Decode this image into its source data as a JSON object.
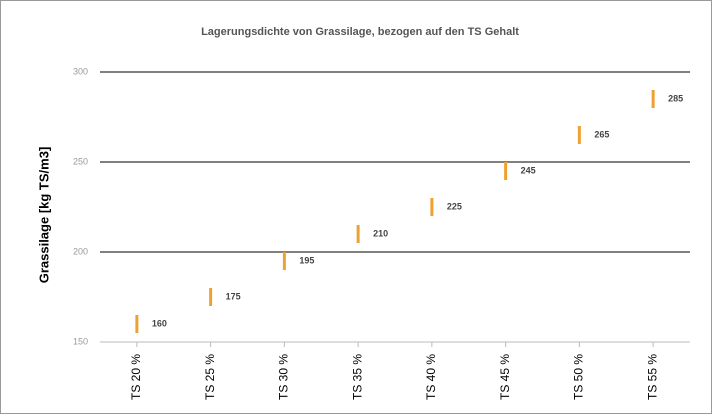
{
  "chart_data": {
    "type": "line-marker",
    "title": "Lagerungsdichte von Grassilage, bezogen auf den TS Gehalt",
    "y_label": "Grassilage [kg TS/m3]",
    "categories": [
      "TS 20 %",
      "TS 25 %",
      "TS 30 %",
      "TS 35 %",
      "TS 40 %",
      "TS 45 %",
      "TS 50 %",
      "TS 55 %"
    ],
    "values": [
      160,
      175,
      195,
      210,
      225,
      245,
      265,
      285
    ],
    "color": "#f0a030",
    "ylim": [
      150,
      300
    ],
    "yticks": [
      150,
      200,
      250,
      300
    ],
    "grid": true
  }
}
